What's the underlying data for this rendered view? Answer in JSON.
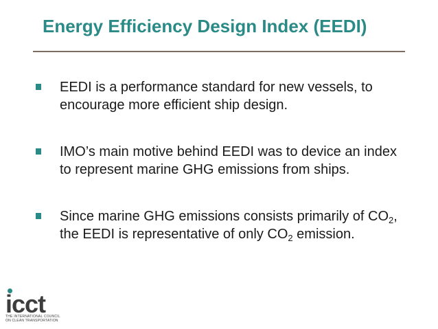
{
  "slide": {
    "title": "Energy Efficiency Design Index (EEDI)",
    "colors": {
      "title": "#2a8a86",
      "rule": "#7d6b5f",
      "bullet_marker": "#2a8a86",
      "logo_accent": "#2a8a86"
    },
    "bullets": [
      {
        "text": "EEDI is a performance standard for new vessels, to encourage more efficient ship design."
      },
      {
        "text": "IMO’s main motive behind EEDI was to device an index to represent marine GHG emissions from ships."
      },
      {
        "part1": "Since marine GHG emissions consists primarily of CO",
        "sub1": "2",
        "part2": ", the EEDI is representative of only CO",
        "sub2": "2",
        "part3": " emission."
      }
    ]
  },
  "logo": {
    "wordmark": "icct",
    "line1": "THE INTERNATIONAL COUNCIL",
    "line2": "ON CLEAN TRANSPORTATION"
  }
}
